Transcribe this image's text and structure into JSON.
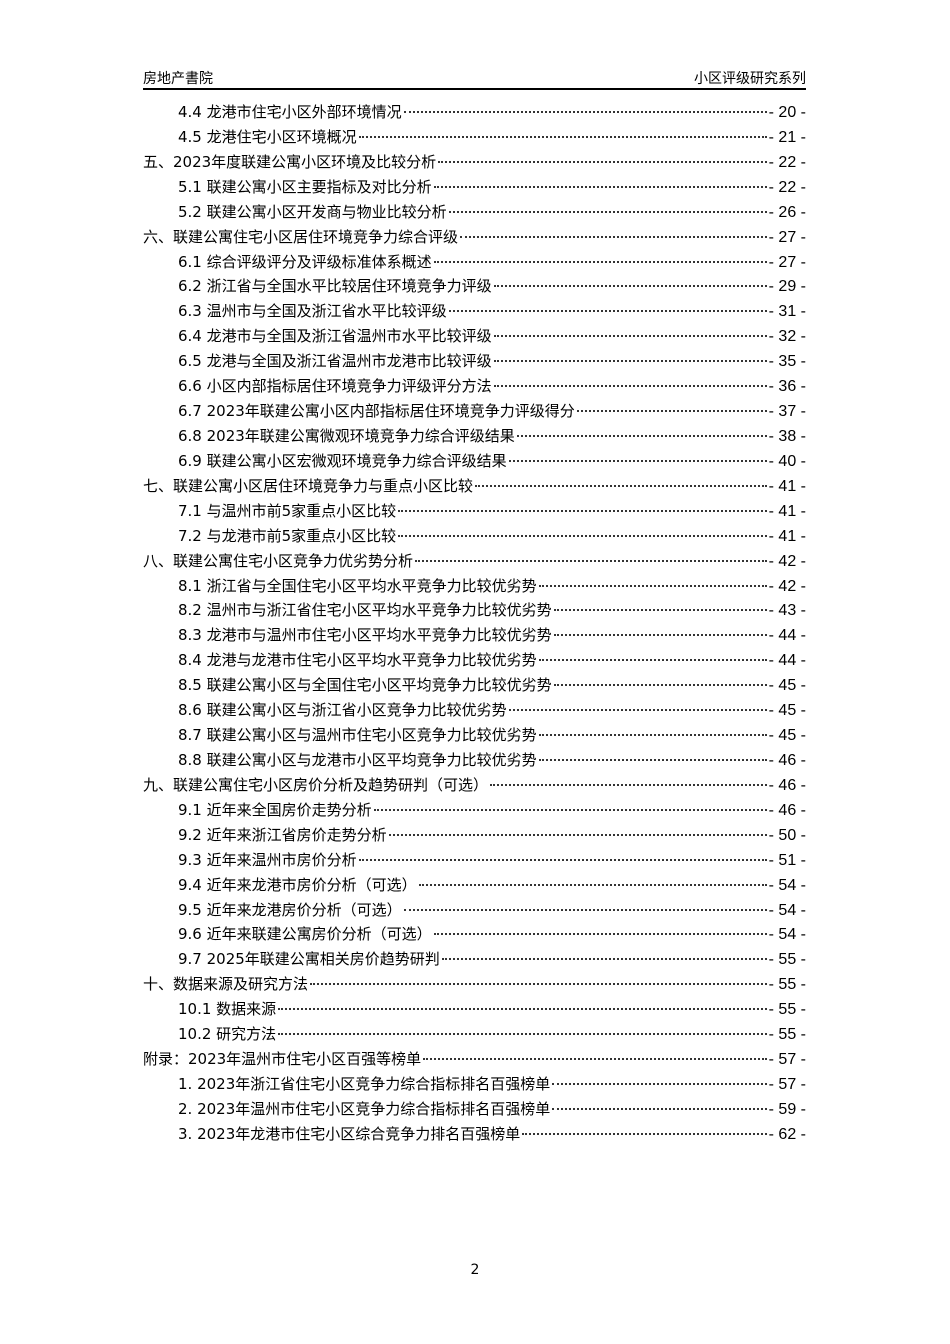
{
  "header": {
    "left": "房地产書院",
    "right": "小区评级研究系列"
  },
  "toc": [
    {
      "level": 2,
      "title": "4.4 龙港市住宅小区外部环境情况",
      "page": "- 20 -"
    },
    {
      "level": 2,
      "title": "4.5 龙港住宅小区环境概况",
      "page": "- 21 -"
    },
    {
      "level": 1,
      "title": "五、2023年度联建公寓小区环境及比较分析",
      "page": "- 22 -"
    },
    {
      "level": 2,
      "title": "5.1 联建公寓小区主要指标及对比分析",
      "page": "- 22 -"
    },
    {
      "level": 2,
      "title": "5.2 联建公寓小区开发商与物业比较分析",
      "page": "- 26 -"
    },
    {
      "level": 1,
      "title": "六、联建公寓住宅小区居住环境竞争力综合评级",
      "page": "- 27 -"
    },
    {
      "level": 2,
      "title": "6.1 综合评级评分及评级标准体系概述",
      "page": "- 27 -"
    },
    {
      "level": 2,
      "title": "6.2 浙江省与全国水平比较居住环境竞争力评级",
      "page": "- 29 -"
    },
    {
      "level": 2,
      "title": "6.3 温州市与全国及浙江省水平比较评级",
      "page": "- 31 -"
    },
    {
      "level": 2,
      "title": "6.4 龙港市与全国及浙江省温州市水平比较评级",
      "page": "- 32 -"
    },
    {
      "level": 2,
      "title": "6.5 龙港与全国及浙江省温州市龙港市比较评级",
      "page": "- 35 -"
    },
    {
      "level": 2,
      "title": "6.6 小区内部指标居住环境竞争力评级评分方法",
      "page": "- 36 -"
    },
    {
      "level": 2,
      "title": "6.7 2023年联建公寓小区内部指标居住环境竞争力评级得分",
      "page": "- 37 -"
    },
    {
      "level": 2,
      "title": "6.8 2023年联建公寓微观环境竞争力综合评级结果",
      "page": "- 38 -"
    },
    {
      "level": 2,
      "title": "6.9 联建公寓小区宏微观环境竞争力综合评级结果",
      "page": "- 40 -"
    },
    {
      "level": 1,
      "title": "七、联建公寓小区居住环境竞争力与重点小区比较",
      "page": "- 41 -"
    },
    {
      "level": 2,
      "title": "7.1 与温州市前5家重点小区比较",
      "page": "- 41 -"
    },
    {
      "level": 2,
      "title": "7.2 与龙港市前5家重点小区比较",
      "page": "- 41 -"
    },
    {
      "level": 1,
      "title": "八、联建公寓住宅小区竞争力优劣势分析",
      "page": "- 42 -"
    },
    {
      "level": 2,
      "title": "8.1 浙江省与全国住宅小区平均水平竞争力比较优劣势",
      "page": "- 42 -"
    },
    {
      "level": 2,
      "title": "8.2 温州市与浙江省住宅小区平均水平竞争力比较优劣势",
      "page": "- 43 -"
    },
    {
      "level": 2,
      "title": "8.3 龙港市与温州市住宅小区平均水平竞争力比较优劣势",
      "page": "- 44 -"
    },
    {
      "level": 2,
      "title": "8.4 龙港与龙港市住宅小区平均水平竞争力比较优劣势",
      "page": "- 44 -"
    },
    {
      "level": 2,
      "title": "8.5 联建公寓小区与全国住宅小区平均竞争力比较优劣势",
      "page": "- 45 -"
    },
    {
      "level": 2,
      "title": "8.6 联建公寓小区与浙江省小区竞争力比较优劣势",
      "page": "- 45 -"
    },
    {
      "level": 2,
      "title": "8.7 联建公寓小区与温州市住宅小区竞争力比较优劣势",
      "page": "- 45 -"
    },
    {
      "level": 2,
      "title": "8.8 联建公寓小区与龙港市小区平均竞争力比较优劣势",
      "page": "- 46 -"
    },
    {
      "level": 1,
      "title": "九、联建公寓住宅小区房价分析及趋势研判（可选）",
      "page": "- 46 -"
    },
    {
      "level": 2,
      "title": "9.1 近年来全国房价走势分析",
      "page": "- 46 -"
    },
    {
      "level": 2,
      "title": "9.2 近年来浙江省房价走势分析",
      "page": "- 50 -"
    },
    {
      "level": 2,
      "title": "9.3 近年来温州市房价分析",
      "page": "- 51 -"
    },
    {
      "level": 2,
      "title": "9.4 近年来龙港市房价分析（可选）",
      "page": "- 54 -"
    },
    {
      "level": 2,
      "title": "9.5 近年来龙港房价分析（可选）",
      "page": "- 54 -"
    },
    {
      "level": 2,
      "title": "9.6 近年来联建公寓房价分析（可选）",
      "page": "- 54 -"
    },
    {
      "level": 2,
      "title": "9.7 2025年联建公寓相关房价趋势研判",
      "page": "- 55 -"
    },
    {
      "level": 1,
      "title": "十、数据来源及研究方法",
      "page": "- 55 -"
    },
    {
      "level": 2,
      "title": "10.1 数据来源",
      "page": "- 55 -"
    },
    {
      "level": 2,
      "title": "10.2 研究方法",
      "page": "- 55 -"
    },
    {
      "level": 1,
      "title": "附录：2023年温州市住宅小区百强等榜单",
      "page": "- 57 -"
    },
    {
      "level": 2,
      "title": "1. 2023年浙江省住宅小区竞争力综合指标排名百强榜单",
      "page": "- 57 -"
    },
    {
      "level": 2,
      "title": "2. 2023年温州市住宅小区竞争力综合指标排名百强榜单",
      "page": "- 59 -"
    },
    {
      "level": 2,
      "title": "3. 2023年龙港市住宅小区综合竞争力排名百强榜单",
      "page": "- 62 -"
    }
  ],
  "footer": {
    "page_number": "2"
  }
}
